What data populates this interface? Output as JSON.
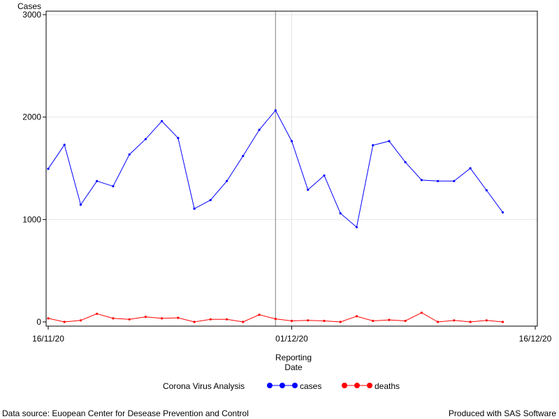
{
  "chart_data": {
    "type": "line",
    "ylabel": "Cases",
    "xlabel_line1": "Reporting",
    "xlabel_line2": "Date",
    "ylim": [
      0,
      3000
    ],
    "yticks": [
      0,
      1000,
      2000,
      3000
    ],
    "xlim": [
      "2020-11-16",
      "2020-12-16"
    ],
    "xticks": [
      {
        "date": "2020-11-16",
        "label": "16/11/20"
      },
      {
        "date": "2020-12-01",
        "label": "01/12/20"
      },
      {
        "date": "2020-12-16",
        "label": "16/12/20"
      }
    ],
    "reference_line_date": "2020-11-30",
    "legend_title": "Corona Virus Analysis",
    "legend_position": "bottom",
    "grid": true,
    "x": [
      "2020-11-16",
      "2020-11-17",
      "2020-11-18",
      "2020-11-19",
      "2020-11-20",
      "2020-11-21",
      "2020-11-22",
      "2020-11-23",
      "2020-11-24",
      "2020-11-25",
      "2020-11-26",
      "2020-11-27",
      "2020-11-28",
      "2020-11-29",
      "2020-11-30",
      "2020-12-01",
      "2020-12-02",
      "2020-12-03",
      "2020-12-04",
      "2020-12-05",
      "2020-12-06",
      "2020-12-07",
      "2020-12-08",
      "2020-12-09",
      "2020-12-10",
      "2020-12-11",
      "2020-12-12",
      "2020-12-13",
      "2020-12-14"
    ],
    "series": [
      {
        "name": "cases",
        "color": "#0000ff",
        "values": [
          1495,
          1730,
          1145,
          1375,
          1325,
          1635,
          1785,
          1960,
          1795,
          1105,
          1190,
          1375,
          1620,
          1875,
          2065,
          1765,
          1290,
          1430,
          1060,
          925,
          1725,
          1765,
          1560,
          1385,
          1375,
          1375,
          1500,
          1285,
          1070
        ]
      },
      {
        "name": "deaths",
        "color": "#ff0000",
        "values": [
          35,
          0,
          15,
          80,
          35,
          25,
          50,
          35,
          40,
          0,
          25,
          25,
          0,
          70,
          30,
          10,
          15,
          10,
          0,
          55,
          10,
          20,
          10,
          90,
          0,
          15,
          0,
          15,
          0
        ]
      }
    ]
  },
  "footer": {
    "source": "Data source: Euopean Center for Desease Prevention and Control",
    "produced": "Produced with SAS Software"
  }
}
